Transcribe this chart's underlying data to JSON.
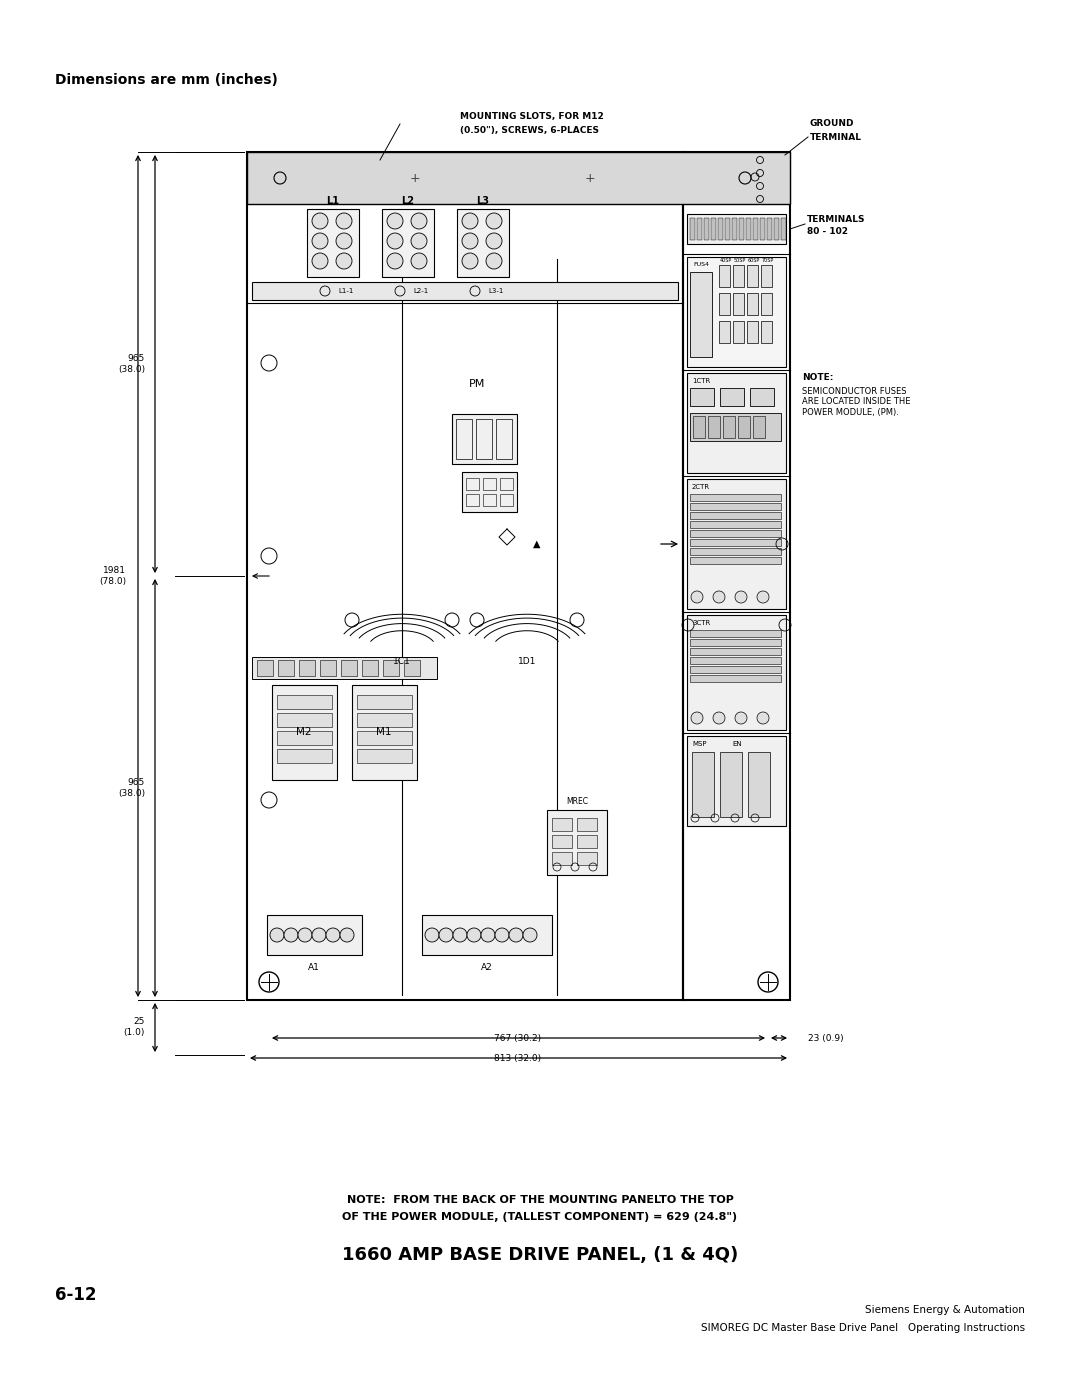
{
  "title": "1660 AMP BASE DRIVE PANEL, (1 & 4Q)",
  "page_label": "6-12",
  "header": "Dimensions are mm (inches)",
  "company": "Siemens Energy & Automation",
  "manual": "SIMOREG DC Master Base Drive Panel   Operating Instructions",
  "note_bottom_line1": "NOTE:  FROM THE BACK OF THE MOUNTING PANELTO THE TOP",
  "note_bottom_line2": "OF THE POWER MODULE, (TALLEST COMPONENT) = 629 (24.8\")",
  "note_side_line1": "NOTE:",
  "note_side_line2": "SEMICONDUCTOR FUSES",
  "note_side_line3": "ARE LOCATED INSIDE THE",
  "note_side_line4": "POWER MODULE, (PM).",
  "label_mounting": "MOUNTING SLOTS, FOR M12\n(0.50\"), SCREWS, 6-PLACES",
  "label_ground": "GROUND\nTERMINAL",
  "label_terminals": "TERMINALS\n80 - 102",
  "dim_965_1": "965\n(38.0)",
  "dim_1981": "1981\n(78.0)",
  "dim_965_2": "965\n(38.0)",
  "dim_25": "25\n(1.0)",
  "dim_767": "767 (30.2)",
  "dim_813": "813 (32.0)",
  "dim_23": "23 (0.9)",
  "bg_color": "#ffffff",
  "line_color": "#000000"
}
